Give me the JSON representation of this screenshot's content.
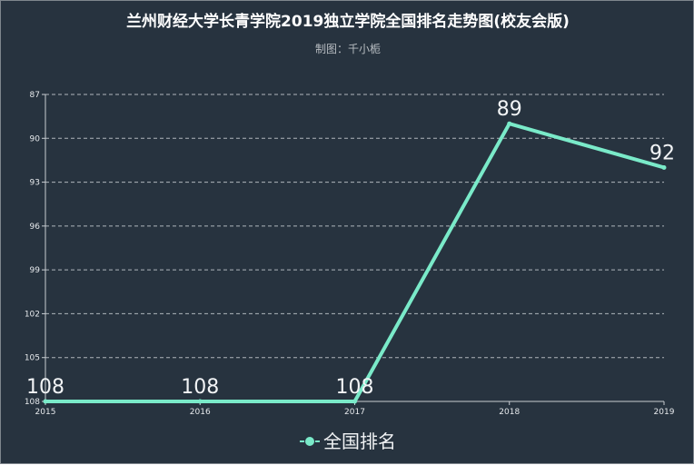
{
  "colors": {
    "background": "#27333f",
    "series": "#7aeac9",
    "grid": "#b0b6bc",
    "axis": "#c8cdd2"
  },
  "chart_data": {
    "type": "line",
    "title": "兰州财经大学长青学院2019独立学院全国排名走势图(校友会版)",
    "subtitle": "制图：千小栀",
    "x": [
      "2015",
      "2016",
      "2017",
      "2018",
      "2019"
    ],
    "series": [
      {
        "name": "全国排名",
        "values": [
          108,
          108,
          108,
          89,
          92
        ]
      }
    ],
    "y_ticks": [
      87,
      90,
      93,
      96,
      99,
      102,
      105,
      108
    ],
    "ylim": [
      87,
      108
    ],
    "y_inverted": true,
    "grid": true,
    "legend": "bottom-center"
  }
}
